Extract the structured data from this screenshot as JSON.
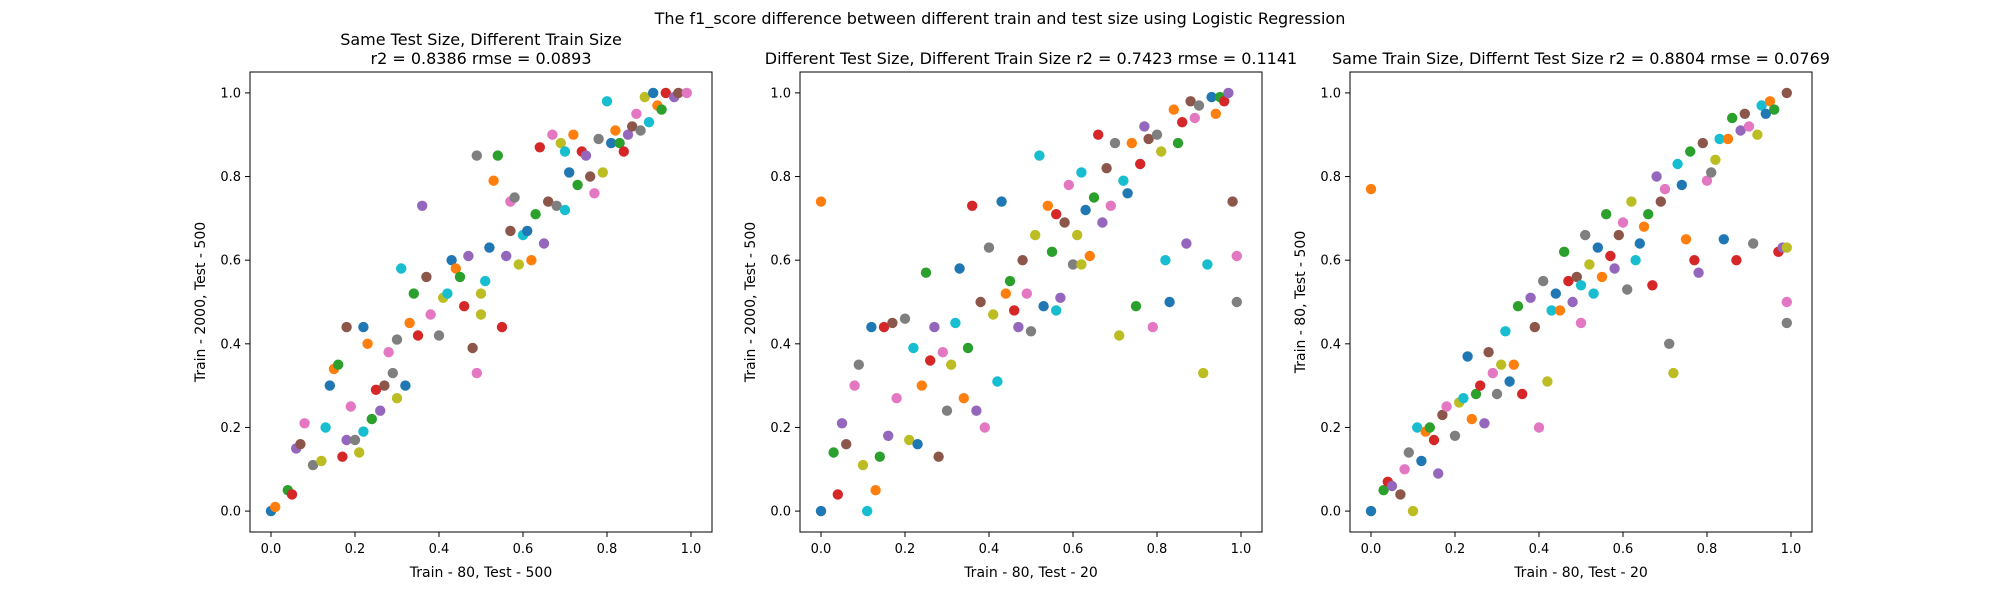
{
  "figure": {
    "suptitle": "The f1_score difference between different train and test size using Logistic Regression"
  },
  "palette": [
    "#1f77b4",
    "#ff7f0e",
    "#2ca02c",
    "#d62728",
    "#9467bd",
    "#8c564b",
    "#e377c2",
    "#7f7f7f",
    "#bcbd22",
    "#17becf"
  ],
  "chart_data": [
    {
      "type": "scatter",
      "title_lines": [
        "Same Test Size, Different Train Size",
        "r2 = 0.8386 rmse = 0.0893"
      ],
      "xlabel": "Train - 80, Test - 500",
      "ylabel": "Train - 2000, Test - 500",
      "xlim": [
        -0.05,
        1.05
      ],
      "ylim": [
        -0.05,
        1.05
      ],
      "xticks": [
        "0.0",
        "0.2",
        "0.4",
        "0.6",
        "0.8",
        "1.0"
      ],
      "yticks": [
        "0.0",
        "0.2",
        "0.4",
        "0.6",
        "0.8",
        "1.0"
      ],
      "grid": false,
      "points": [
        [
          0.0,
          0.0
        ],
        [
          0.01,
          0.01
        ],
        [
          0.04,
          0.05
        ],
        [
          0.05,
          0.04
        ],
        [
          0.06,
          0.15
        ],
        [
          0.07,
          0.16
        ],
        [
          0.08,
          0.21
        ],
        [
          0.1,
          0.11
        ],
        [
          0.12,
          0.12
        ],
        [
          0.13,
          0.2
        ],
        [
          0.14,
          0.3
        ],
        [
          0.15,
          0.34
        ],
        [
          0.16,
          0.35
        ],
        [
          0.17,
          0.13
        ],
        [
          0.18,
          0.17
        ],
        [
          0.18,
          0.44
        ],
        [
          0.19,
          0.25
        ],
        [
          0.2,
          0.17
        ],
        [
          0.21,
          0.14
        ],
        [
          0.22,
          0.19
        ],
        [
          0.22,
          0.44
        ],
        [
          0.23,
          0.4
        ],
        [
          0.24,
          0.22
        ],
        [
          0.25,
          0.29
        ],
        [
          0.26,
          0.24
        ],
        [
          0.27,
          0.3
        ],
        [
          0.28,
          0.38
        ],
        [
          0.29,
          0.33
        ],
        [
          0.3,
          0.27
        ],
        [
          0.31,
          0.58
        ],
        [
          0.32,
          0.3
        ],
        [
          0.33,
          0.45
        ],
        [
          0.34,
          0.52
        ],
        [
          0.35,
          0.42
        ],
        [
          0.36,
          0.73
        ],
        [
          0.37,
          0.56
        ],
        [
          0.38,
          0.47
        ],
        [
          0.4,
          0.42
        ],
        [
          0.41,
          0.51
        ],
        [
          0.42,
          0.52
        ],
        [
          0.43,
          0.6
        ],
        [
          0.44,
          0.58
        ],
        [
          0.45,
          0.56
        ],
        [
          0.46,
          0.49
        ],
        [
          0.47,
          0.61
        ],
        [
          0.48,
          0.39
        ],
        [
          0.49,
          0.33
        ],
        [
          0.49,
          0.85
        ],
        [
          0.5,
          0.47
        ],
        [
          0.51,
          0.55
        ],
        [
          0.52,
          0.63
        ],
        [
          0.53,
          0.79
        ],
        [
          0.54,
          0.85
        ],
        [
          0.55,
          0.44
        ],
        [
          0.56,
          0.61
        ],
        [
          0.57,
          0.67
        ],
        [
          0.57,
          0.74
        ],
        [
          0.58,
          0.75
        ],
        [
          0.59,
          0.59
        ],
        [
          0.6,
          0.66
        ],
        [
          0.61,
          0.67
        ],
        [
          0.62,
          0.6
        ],
        [
          0.63,
          0.71
        ],
        [
          0.64,
          0.87
        ],
        [
          0.65,
          0.64
        ],
        [
          0.66,
          0.74
        ],
        [
          0.67,
          0.9
        ],
        [
          0.68,
          0.73
        ],
        [
          0.69,
          0.88
        ],
        [
          0.7,
          0.86
        ],
        [
          0.71,
          0.81
        ],
        [
          0.72,
          0.9
        ],
        [
          0.73,
          0.78
        ],
        [
          0.74,
          0.86
        ],
        [
          0.75,
          0.85
        ],
        [
          0.76,
          0.8
        ],
        [
          0.77,
          0.76
        ],
        [
          0.78,
          0.89
        ],
        [
          0.79,
          0.81
        ],
        [
          0.8,
          0.98
        ],
        [
          0.81,
          0.88
        ],
        [
          0.82,
          0.91
        ],
        [
          0.83,
          0.88
        ],
        [
          0.84,
          0.86
        ],
        [
          0.85,
          0.9
        ],
        [
          0.86,
          0.92
        ],
        [
          0.87,
          0.95
        ],
        [
          0.88,
          0.91
        ],
        [
          0.89,
          0.99
        ],
        [
          0.9,
          0.93
        ],
        [
          0.91,
          1.0
        ],
        [
          0.92,
          0.97
        ],
        [
          0.93,
          0.96
        ],
        [
          0.94,
          1.0
        ],
        [
          0.96,
          0.99
        ],
        [
          0.97,
          1.0
        ],
        [
          0.99,
          1.0
        ],
        [
          0.3,
          0.41
        ],
        [
          0.5,
          0.52
        ],
        [
          0.7,
          0.72
        ]
      ]
    },
    {
      "type": "scatter",
      "title_lines": [
        "Different Test Size, Different Train Size r2 = 0.7423 rmse = 0.1141"
      ],
      "xlabel": "Train - 80, Test - 20",
      "ylabel": "Train - 2000, Test - 500",
      "xlim": [
        -0.05,
        1.05
      ],
      "ylim": [
        -0.05,
        1.05
      ],
      "xticks": [
        "0.0",
        "0.2",
        "0.4",
        "0.6",
        "0.8",
        "1.0"
      ],
      "yticks": [
        "0.0",
        "0.2",
        "0.4",
        "0.6",
        "0.8",
        "1.0"
      ],
      "grid": false,
      "points": [
        [
          0.0,
          0.0
        ],
        [
          0.0,
          0.74
        ],
        [
          0.03,
          0.14
        ],
        [
          0.04,
          0.04
        ],
        [
          0.05,
          0.21
        ],
        [
          0.06,
          0.16
        ],
        [
          0.08,
          0.3
        ],
        [
          0.09,
          0.35
        ],
        [
          0.1,
          0.11
        ],
        [
          0.11,
          0.0
        ],
        [
          0.12,
          0.44
        ],
        [
          0.13,
          0.05
        ],
        [
          0.14,
          0.13
        ],
        [
          0.15,
          0.44
        ],
        [
          0.16,
          0.18
        ],
        [
          0.17,
          0.45
        ],
        [
          0.18,
          0.27
        ],
        [
          0.2,
          0.46
        ],
        [
          0.21,
          0.17
        ],
        [
          0.22,
          0.39
        ],
        [
          0.23,
          0.16
        ],
        [
          0.24,
          0.3
        ],
        [
          0.25,
          0.57
        ],
        [
          0.26,
          0.36
        ],
        [
          0.27,
          0.44
        ],
        [
          0.28,
          0.13
        ],
        [
          0.29,
          0.38
        ],
        [
          0.3,
          0.24
        ],
        [
          0.31,
          0.35
        ],
        [
          0.32,
          0.45
        ],
        [
          0.33,
          0.58
        ],
        [
          0.34,
          0.27
        ],
        [
          0.35,
          0.39
        ],
        [
          0.36,
          0.73
        ],
        [
          0.37,
          0.24
        ],
        [
          0.38,
          0.5
        ],
        [
          0.39,
          0.2
        ],
        [
          0.4,
          0.63
        ],
        [
          0.41,
          0.47
        ],
        [
          0.42,
          0.31
        ],
        [
          0.43,
          0.74
        ],
        [
          0.44,
          0.52
        ],
        [
          0.45,
          0.55
        ],
        [
          0.46,
          0.48
        ],
        [
          0.47,
          0.44
        ],
        [
          0.48,
          0.6
        ],
        [
          0.49,
          0.52
        ],
        [
          0.5,
          0.43
        ],
        [
          0.51,
          0.66
        ],
        [
          0.52,
          0.85
        ],
        [
          0.53,
          0.49
        ],
        [
          0.54,
          0.73
        ],
        [
          0.55,
          0.62
        ],
        [
          0.56,
          0.71
        ],
        [
          0.57,
          0.51
        ],
        [
          0.58,
          0.69
        ],
        [
          0.59,
          0.78
        ],
        [
          0.6,
          0.59
        ],
        [
          0.61,
          0.66
        ],
        [
          0.62,
          0.81
        ],
        [
          0.63,
          0.72
        ],
        [
          0.64,
          0.61
        ],
        [
          0.65,
          0.75
        ],
        [
          0.66,
          0.9
        ],
        [
          0.67,
          0.69
        ],
        [
          0.68,
          0.82
        ],
        [
          0.69,
          0.73
        ],
        [
          0.7,
          0.88
        ],
        [
          0.71,
          0.42
        ],
        [
          0.72,
          0.79
        ],
        [
          0.73,
          0.76
        ],
        [
          0.74,
          0.88
        ],
        [
          0.75,
          0.49
        ],
        [
          0.76,
          0.83
        ],
        [
          0.77,
          0.92
        ],
        [
          0.78,
          0.89
        ],
        [
          0.79,
          0.44
        ],
        [
          0.8,
          0.9
        ],
        [
          0.81,
          0.86
        ],
        [
          0.82,
          0.6
        ],
        [
          0.83,
          0.5
        ],
        [
          0.84,
          0.96
        ],
        [
          0.85,
          0.88
        ],
        [
          0.86,
          0.93
        ],
        [
          0.87,
          0.64
        ],
        [
          0.88,
          0.98
        ],
        [
          0.89,
          0.94
        ],
        [
          0.9,
          0.97
        ],
        [
          0.91,
          0.33
        ],
        [
          0.92,
          0.59
        ],
        [
          0.93,
          0.99
        ],
        [
          0.94,
          0.95
        ],
        [
          0.95,
          0.99
        ],
        [
          0.96,
          0.98
        ],
        [
          0.97,
          1.0
        ],
        [
          0.98,
          0.74
        ],
        [
          0.99,
          0.61
        ],
        [
          0.99,
          0.5
        ],
        [
          0.62,
          0.59
        ],
        [
          0.56,
          0.48
        ]
      ]
    },
    {
      "type": "scatter",
      "title_lines": [
        "Same Train Size, Differnt Test Size r2 = 0.8804 rmse = 0.0769"
      ],
      "xlabel": "Train - 80, Test - 20",
      "ylabel": "Train - 80, Test - 500",
      "xlim": [
        -0.05,
        1.05
      ],
      "ylim": [
        -0.05,
        1.05
      ],
      "xticks": [
        "0.0",
        "0.2",
        "0.4",
        "0.6",
        "0.8",
        "1.0"
      ],
      "yticks": [
        "0.0",
        "0.2",
        "0.4",
        "0.6",
        "0.8",
        "1.0"
      ],
      "grid": false,
      "points": [
        [
          0.0,
          0.0
        ],
        [
          0.0,
          0.77
        ],
        [
          0.03,
          0.05
        ],
        [
          0.04,
          0.07
        ],
        [
          0.05,
          0.06
        ],
        [
          0.07,
          0.04
        ],
        [
          0.08,
          0.1
        ],
        [
          0.09,
          0.14
        ],
        [
          0.1,
          0.0
        ],
        [
          0.11,
          0.2
        ],
        [
          0.12,
          0.12
        ],
        [
          0.13,
          0.19
        ],
        [
          0.14,
          0.2
        ],
        [
          0.15,
          0.17
        ],
        [
          0.16,
          0.09
        ],
        [
          0.17,
          0.23
        ],
        [
          0.18,
          0.25
        ],
        [
          0.2,
          0.18
        ],
        [
          0.21,
          0.26
        ],
        [
          0.22,
          0.27
        ],
        [
          0.23,
          0.37
        ],
        [
          0.24,
          0.22
        ],
        [
          0.25,
          0.28
        ],
        [
          0.26,
          0.3
        ],
        [
          0.27,
          0.21
        ],
        [
          0.28,
          0.38
        ],
        [
          0.29,
          0.33
        ],
        [
          0.3,
          0.28
        ],
        [
          0.31,
          0.35
        ],
        [
          0.32,
          0.43
        ],
        [
          0.33,
          0.31
        ],
        [
          0.34,
          0.35
        ],
        [
          0.35,
          0.49
        ],
        [
          0.36,
          0.28
        ],
        [
          0.38,
          0.51
        ],
        [
          0.39,
          0.44
        ],
        [
          0.4,
          0.2
        ],
        [
          0.41,
          0.55
        ],
        [
          0.42,
          0.31
        ],
        [
          0.43,
          0.48
        ],
        [
          0.44,
          0.52
        ],
        [
          0.45,
          0.48
        ],
        [
          0.46,
          0.62
        ],
        [
          0.47,
          0.55
        ],
        [
          0.48,
          0.5
        ],
        [
          0.49,
          0.56
        ],
        [
          0.5,
          0.45
        ],
        [
          0.51,
          0.66
        ],
        [
          0.52,
          0.59
        ],
        [
          0.53,
          0.52
        ],
        [
          0.54,
          0.63
        ],
        [
          0.55,
          0.56
        ],
        [
          0.56,
          0.71
        ],
        [
          0.57,
          0.61
        ],
        [
          0.58,
          0.58
        ],
        [
          0.59,
          0.66
        ],
        [
          0.6,
          0.69
        ],
        [
          0.61,
          0.53
        ],
        [
          0.62,
          0.74
        ],
        [
          0.63,
          0.6
        ],
        [
          0.64,
          0.64
        ],
        [
          0.65,
          0.68
        ],
        [
          0.66,
          0.71
        ],
        [
          0.67,
          0.54
        ],
        [
          0.68,
          0.8
        ],
        [
          0.69,
          0.74
        ],
        [
          0.7,
          0.77
        ],
        [
          0.71,
          0.4
        ],
        [
          0.72,
          0.33
        ],
        [
          0.73,
          0.83
        ],
        [
          0.74,
          0.78
        ],
        [
          0.75,
          0.65
        ],
        [
          0.76,
          0.86
        ],
        [
          0.77,
          0.6
        ],
        [
          0.78,
          0.57
        ],
        [
          0.79,
          0.88
        ],
        [
          0.8,
          0.79
        ],
        [
          0.81,
          0.81
        ],
        [
          0.82,
          0.84
        ],
        [
          0.83,
          0.89
        ],
        [
          0.84,
          0.65
        ],
        [
          0.85,
          0.89
        ],
        [
          0.86,
          0.94
        ],
        [
          0.87,
          0.6
        ],
        [
          0.88,
          0.91
        ],
        [
          0.89,
          0.95
        ],
        [
          0.9,
          0.92
        ],
        [
          0.91,
          0.64
        ],
        [
          0.92,
          0.9
        ],
        [
          0.93,
          0.97
        ],
        [
          0.94,
          0.95
        ],
        [
          0.95,
          0.98
        ],
        [
          0.96,
          0.96
        ],
        [
          0.97,
          0.62
        ],
        [
          0.98,
          0.63
        ],
        [
          0.99,
          1.0
        ],
        [
          0.99,
          0.5
        ],
        [
          0.99,
          0.45
        ],
        [
          0.99,
          0.63
        ],
        [
          0.5,
          0.54
        ]
      ]
    }
  ]
}
